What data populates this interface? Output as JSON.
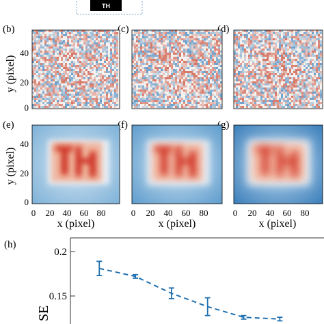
{
  "top_figure": {
    "label": "TH"
  },
  "panels": {
    "b": {
      "label": "(b)"
    },
    "c": {
      "label": "(c)"
    },
    "d": {
      "label": "(d)"
    },
    "e": {
      "label": "(e)"
    },
    "f": {
      "label": "(f)"
    },
    "g": {
      "label": "(g)"
    }
  },
  "axes": {
    "ylabel": "y (pixel)",
    "xlabel": "x (pixel)",
    "y_ticks": [
      "0",
      "20",
      "40"
    ],
    "x_ticks": [
      "0",
      "20",
      "40",
      "60",
      "80"
    ]
  },
  "colors": {
    "blue": "#1f6fb0",
    "red": "#c0392b",
    "line": "#1f6fb0"
  },
  "chart_data": {
    "type": "line",
    "label": "(h)",
    "ylabel": "SE",
    "y_ticks": [
      "0.2",
      "0.15"
    ],
    "ylim": [
      0.12,
      0.2
    ],
    "series": [
      {
        "points": [
          {
            "x": 1,
            "y": 0.181,
            "err": 0.008
          },
          {
            "x": 2,
            "y": 0.172,
            "err": 0.002
          },
          {
            "x": 3,
            "y": 0.153,
            "err": 0.006
          },
          {
            "x": 4,
            "y": 0.138,
            "err": 0.01
          },
          {
            "x": 5,
            "y": 0.126,
            "err": 0.002
          },
          {
            "x": 6,
            "y": 0.124,
            "err": 0.002
          }
        ]
      }
    ]
  }
}
